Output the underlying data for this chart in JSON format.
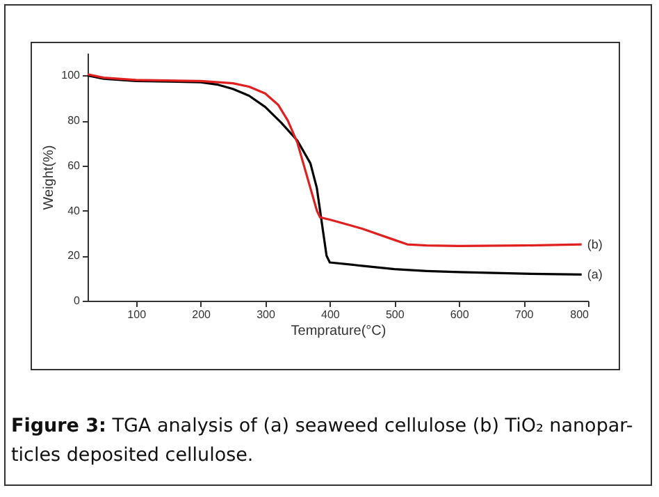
{
  "chart_data": {
    "type": "line",
    "xlabel": "Temprature(°C)",
    "ylabel": "Weight(%)",
    "xlim": [
      25,
      800
    ],
    "ylim": [
      0,
      110
    ],
    "xticks": [
      100,
      200,
      300,
      400,
      500,
      600,
      700,
      800
    ],
    "yticks": [
      0,
      20,
      40,
      60,
      80,
      100
    ],
    "grid": false,
    "legend": false,
    "marker": "none",
    "line_style": "solid",
    "annotations": [
      "Figure 3: TGA analysis of (a) seaweed cellulose (b) TiO₂ nanopar-ticles deposited cellulose."
    ],
    "series": [
      {
        "name": "(a)",
        "color": "#000000",
        "x": [
          25,
          50,
          100,
          150,
          200,
          225,
          250,
          275,
          300,
          325,
          350,
          370,
          380,
          385,
          390,
          395,
          400,
          450,
          500,
          550,
          600,
          700,
          790
        ],
        "values": [
          100,
          98.5,
          97.5,
          97.3,
          97,
          96,
          94,
          91,
          86,
          79,
          71,
          61,
          50,
          40,
          30,
          20,
          17,
          15.5,
          14,
          13.2,
          12.7,
          12,
          11.6
        ]
      },
      {
        "name": "(b)",
        "color": "#e0201e",
        "x": [
          25,
          50,
          100,
          200,
          250,
          275,
          300,
          320,
          335,
          350,
          360,
          370,
          380,
          385,
          400,
          450,
          500,
          520,
          550,
          600,
          700,
          790
        ],
        "values": [
          100.5,
          99,
          98,
          97.5,
          96.5,
          95,
          92,
          87,
          80,
          70,
          60,
          50,
          40,
          37,
          36,
          32,
          27,
          25,
          24.5,
          24.3,
          24.5,
          25
        ]
      }
    ]
  }
}
